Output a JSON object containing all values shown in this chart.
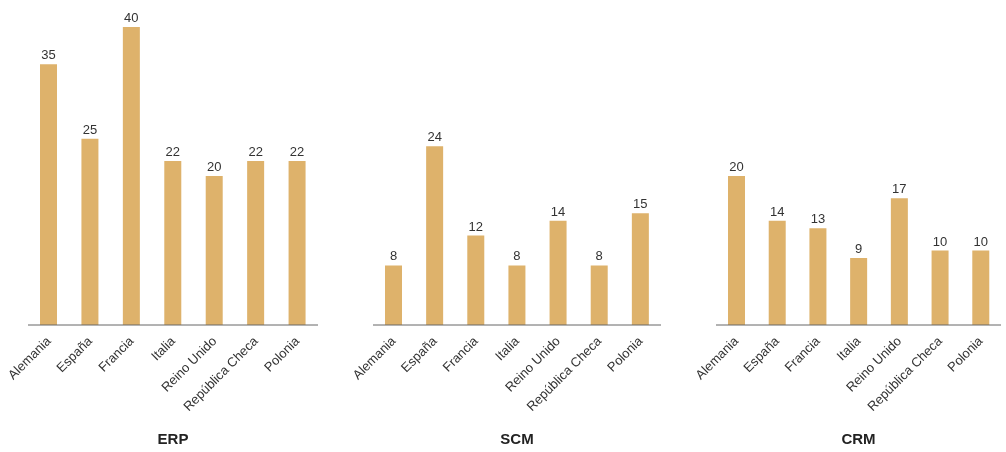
{
  "chart_data": [
    {
      "type": "bar",
      "xlabel": "ERP",
      "categories": [
        "Alemania",
        "España",
        "Francia",
        "Italia",
        "Reino Unido",
        "República Checa",
        "Polonia"
      ],
      "values": [
        35,
        25,
        40,
        22,
        20,
        22,
        22
      ],
      "color": "#deb26b",
      "data_labels": true,
      "grid": false,
      "legend": false
    },
    {
      "type": "bar",
      "xlabel": "SCM",
      "categories": [
        "Alemania",
        "España",
        "Francia",
        "Italia",
        "Reino Unido",
        "República Checa",
        "Polonia"
      ],
      "values": [
        8,
        24,
        12,
        8,
        14,
        8,
        15
      ],
      "color": "#deb26b",
      "data_labels": true,
      "grid": false,
      "legend": false
    },
    {
      "type": "bar",
      "xlabel": "CRM",
      "categories": [
        "Alemania",
        "España",
        "Francia",
        "Italia",
        "Reino Unido",
        "República Checa",
        "Polonia"
      ],
      "values": [
        20,
        14,
        13,
        9,
        17,
        10,
        10
      ],
      "color": "#deb26b",
      "data_labels": true,
      "grid": false,
      "legend": false
    }
  ]
}
